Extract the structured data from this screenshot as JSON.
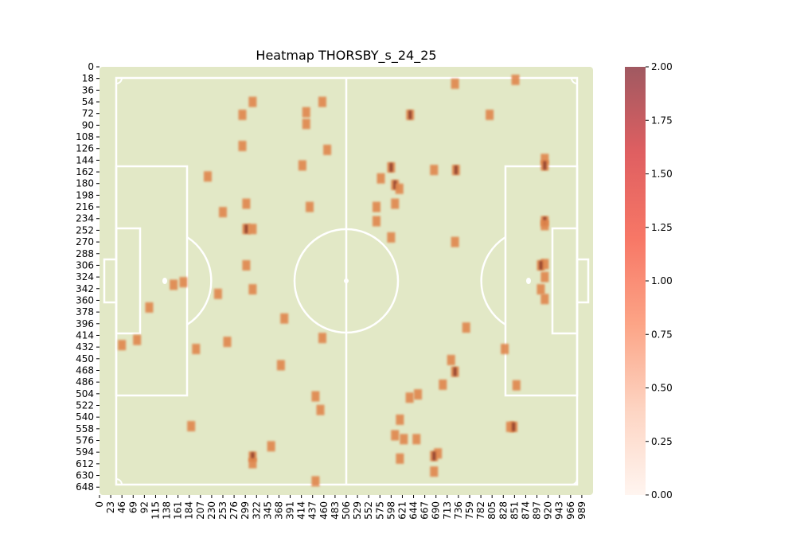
{
  "chart_data": {
    "type": "heatmap",
    "title": "Heatmap THORSBY_s_24_25",
    "xlabel": "",
    "ylabel": "",
    "x_range": [
      0,
      1012
    ],
    "y_range": [
      0,
      660
    ],
    "x_ticks": [
      0,
      23,
      46,
      69,
      92,
      115,
      138,
      161,
      184,
      207,
      230,
      253,
      276,
      299,
      322,
      345,
      368,
      391,
      414,
      437,
      460,
      483,
      506,
      529,
      552,
      575,
      598,
      621,
      644,
      667,
      690,
      713,
      736,
      759,
      782,
      805,
      828,
      851,
      874,
      897,
      920,
      943,
      966,
      989
    ],
    "y_ticks": [
      0,
      18,
      36,
      54,
      72,
      90,
      108,
      126,
      144,
      162,
      180,
      198,
      216,
      234,
      252,
      270,
      288,
      306,
      324,
      342,
      360,
      378,
      396,
      414,
      432,
      450,
      468,
      486,
      504,
      522,
      540,
      558,
      576,
      594,
      612,
      630,
      648
    ],
    "colorbar": {
      "min": 0,
      "max": 2.0,
      "ticks": [
        "0.00",
        "0.25",
        "0.50",
        "0.75",
        "1.00",
        "1.25",
        "1.50",
        "1.75",
        "2.00"
      ],
      "colors": [
        "#fff5f0",
        "#fdd4c2",
        "#fca486",
        "#f77766",
        "#df5f61",
        "#a05961"
      ]
    },
    "pitch_color": "#e2e8c6",
    "marker_color": "#e0864d",
    "grid": false,
    "points": [
      [
        729,
        26,
        1
      ],
      [
        853,
        20,
        1
      ],
      [
        314,
        54,
        1
      ],
      [
        457,
        54,
        1
      ],
      [
        293,
        74,
        1
      ],
      [
        424,
        70,
        1
      ],
      [
        637,
        74,
        2
      ],
      [
        800,
        74,
        1
      ],
      [
        424,
        88,
        1
      ],
      [
        293,
        122,
        1
      ],
      [
        467,
        128,
        1
      ],
      [
        416,
        152,
        1
      ],
      [
        598,
        155,
        2
      ],
      [
        686,
        159,
        1
      ],
      [
        731,
        159,
        2
      ],
      [
        913,
        142,
        1
      ],
      [
        913,
        152,
        2
      ],
      [
        222,
        169,
        1
      ],
      [
        577,
        172,
        1
      ],
      [
        606,
        182,
        2
      ],
      [
        615,
        188,
        1
      ],
      [
        301,
        211,
        1
      ],
      [
        431,
        216,
        1
      ],
      [
        568,
        216,
        1
      ],
      [
        606,
        211,
        1
      ],
      [
        253,
        224,
        1
      ],
      [
        568,
        238,
        1
      ],
      [
        913,
        238,
        2
      ],
      [
        913,
        244,
        1
      ],
      [
        301,
        250,
        2
      ],
      [
        314,
        250,
        1
      ],
      [
        598,
        263,
        1
      ],
      [
        729,
        270,
        1
      ],
      [
        301,
        306,
        1
      ],
      [
        913,
        304,
        1
      ],
      [
        905,
        306,
        2
      ],
      [
        913,
        324,
        1
      ],
      [
        172,
        332,
        1
      ],
      [
        152,
        336,
        1
      ],
      [
        905,
        343,
        1
      ],
      [
        913,
        358,
        1
      ],
      [
        314,
        343,
        1
      ],
      [
        243,
        350,
        1
      ],
      [
        102,
        371,
        1
      ],
      [
        379,
        388,
        1
      ],
      [
        752,
        402,
        1
      ],
      [
        457,
        418,
        1
      ],
      [
        77,
        421,
        1
      ],
      [
        262,
        424,
        1
      ],
      [
        46,
        429,
        1
      ],
      [
        198,
        435,
        1
      ],
      [
        831,
        435,
        1
      ],
      [
        721,
        452,
        1
      ],
      [
        729,
        470,
        2
      ],
      [
        372,
        460,
        1
      ],
      [
        704,
        490,
        1
      ],
      [
        855,
        491,
        1
      ],
      [
        443,
        508,
        1
      ],
      [
        453,
        529,
        1
      ],
      [
        653,
        505,
        1
      ],
      [
        636,
        510,
        1
      ],
      [
        616,
        544,
        1
      ],
      [
        188,
        554,
        1
      ],
      [
        842,
        555,
        1
      ],
      [
        849,
        555,
        2
      ],
      [
        606,
        568,
        1
      ],
      [
        624,
        574,
        1
      ],
      [
        650,
        574,
        1
      ],
      [
        352,
        585,
        1
      ],
      [
        694,
        596,
        1
      ],
      [
        686,
        600,
        2
      ],
      [
        314,
        601,
        2
      ],
      [
        314,
        611,
        1
      ],
      [
        616,
        604,
        1
      ],
      [
        686,
        624,
        1
      ],
      [
        443,
        639,
        1
      ]
    ]
  }
}
